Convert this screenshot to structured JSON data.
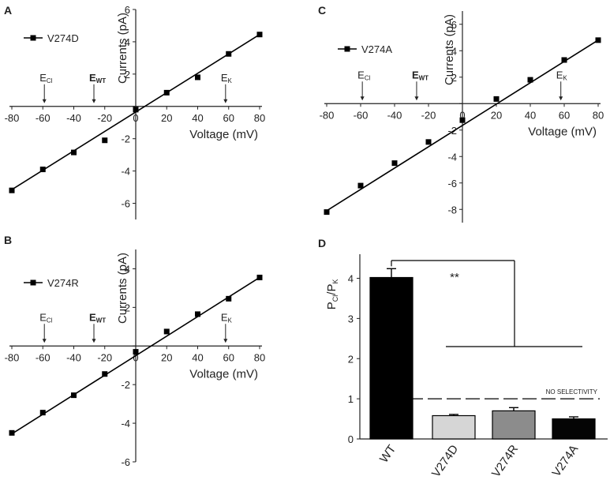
{
  "chart_data": [
    {
      "panel": "A",
      "type": "line",
      "series": [
        {
          "name": "V274D",
          "x": [
            -80,
            -60,
            -40,
            -20,
            0,
            20,
            40,
            60,
            80
          ],
          "y": [
            -5.2,
            -3.9,
            -2.85,
            -2.1,
            -0.2,
            0.85,
            1.8,
            3.25,
            4.45
          ]
        }
      ],
      "fit": {
        "x": [
          -80,
          80
        ],
        "y": [
          -5.15,
          4.45
        ]
      },
      "xlabel": "Voltage (mV)",
      "ylabel": "Currents (pA)",
      "xlim": [
        -80,
        80
      ],
      "ylim": [
        -7,
        6
      ],
      "xticks": [
        -80,
        -60,
        -40,
        -20,
        0,
        20,
        40,
        60,
        80
      ],
      "yticks": [
        -6,
        -4,
        -2,
        0,
        2,
        4,
        6
      ],
      "markers": [
        {
          "label": "E",
          "sub": "Cl",
          "x": -59,
          "bold": false
        },
        {
          "label": "E",
          "sub": "WT",
          "x": -27,
          "bold": true
        },
        {
          "label": "E",
          "sub": "K",
          "x": 58,
          "bold": false
        }
      ]
    },
    {
      "panel": "B",
      "type": "line",
      "series": [
        {
          "name": "V274R",
          "x": [
            -80,
            -60,
            -40,
            -20,
            0,
            20,
            40,
            60,
            80
          ],
          "y": [
            -4.5,
            -3.45,
            -2.55,
            -1.45,
            -0.3,
            0.75,
            1.65,
            2.45,
            3.55
          ]
        }
      ],
      "fit": {
        "x": [
          -80,
          80
        ],
        "y": [
          -4.55,
          3.55
        ]
      },
      "xlabel": "Voltage (mV)",
      "ylabel": "Currents (pA)",
      "xlim": [
        -80,
        80
      ],
      "ylim": [
        -6,
        5
      ],
      "xticks": [
        -80,
        -60,
        -40,
        -20,
        0,
        20,
        40,
        60,
        80
      ],
      "yticks": [
        -6,
        -4,
        -2,
        0,
        2,
        4
      ],
      "markers": [
        {
          "label": "E",
          "sub": "Cl",
          "x": -59,
          "bold": false
        },
        {
          "label": "E",
          "sub": "WT",
          "x": -27,
          "bold": true
        },
        {
          "label": "E",
          "sub": "K",
          "x": 58,
          "bold": false
        }
      ]
    },
    {
      "panel": "C",
      "type": "line",
      "series": [
        {
          "name": "V274A",
          "x": [
            -80,
            -60,
            -40,
            -20,
            0,
            20,
            40,
            60,
            80
          ],
          "y": [
            -8.2,
            -6.2,
            -4.5,
            -2.9,
            -1.25,
            0.35,
            1.8,
            3.3,
            4.8
          ]
        }
      ],
      "fit": {
        "x": [
          -80,
          80
        ],
        "y": [
          -8.1,
          4.8
        ]
      },
      "xlabel": "Voltage (mV)",
      "ylabel": "Currents (pA)",
      "xlim": [
        -80,
        80
      ],
      "ylim": [
        -9,
        7
      ],
      "xticks": [
        -80,
        -60,
        -40,
        -20,
        0,
        20,
        40,
        60,
        80
      ],
      "yticks": [
        -8,
        -6,
        -4,
        -2,
        0,
        2,
        4,
        6
      ],
      "markers": [
        {
          "label": "E",
          "sub": "Cl",
          "x": -59,
          "bold": false
        },
        {
          "label": "E",
          "sub": "WT",
          "x": -27,
          "bold": true
        },
        {
          "label": "E",
          "sub": "K",
          "x": 58,
          "bold": false
        }
      ]
    },
    {
      "panel": "D",
      "type": "bar",
      "categories": [
        "WT",
        "V274D",
        "V274R",
        "V274A"
      ],
      "values": [
        4.02,
        0.58,
        0.7,
        0.5
      ],
      "errors": [
        0.22,
        0.03,
        0.08,
        0.05
      ],
      "colors": [
        "#000000",
        "#d6d6d6",
        "#8c8c8c",
        "#050505"
      ],
      "ylabel_main": "P",
      "ylabel_sub1": "Cl",
      "ylabel_mid": "/P",
      "ylabel_sub2": "K",
      "ylim": [
        0,
        4.6
      ],
      "yticks": [
        0,
        1,
        2,
        3,
        4
      ],
      "significance": "**",
      "reference_line": {
        "y": 1,
        "label": "NO SELECTIVITY"
      }
    }
  ]
}
